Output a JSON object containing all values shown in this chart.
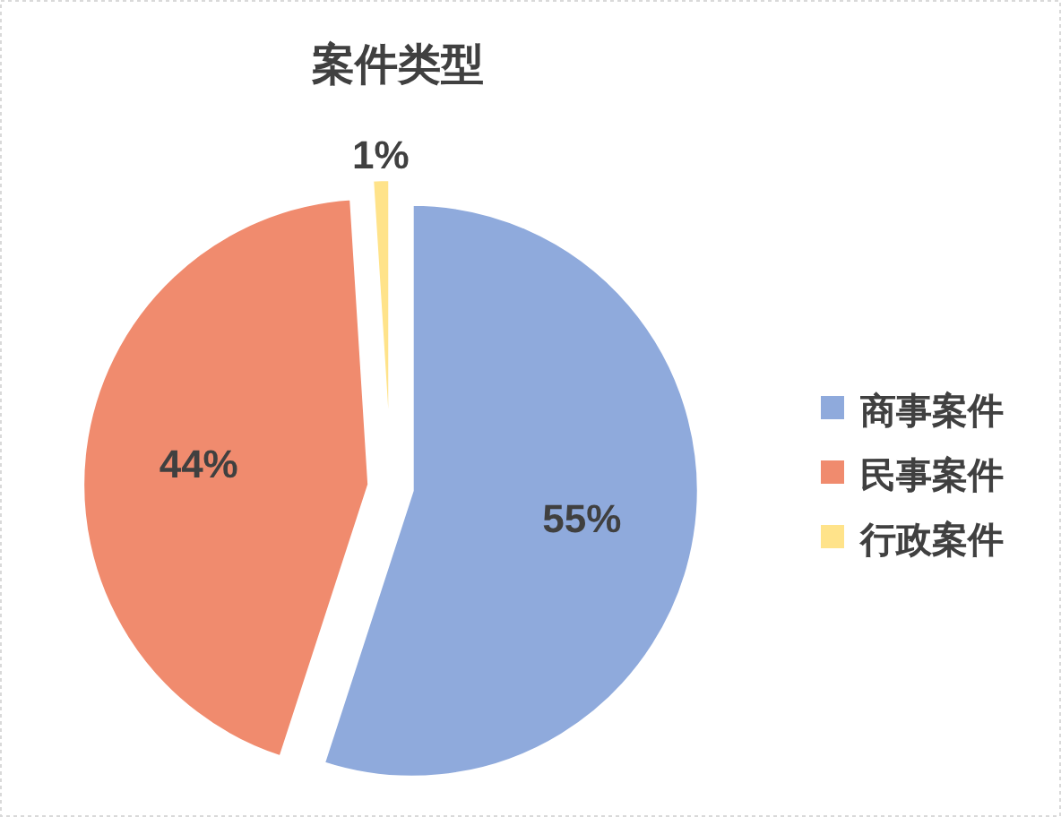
{
  "chart_data": {
    "type": "pie",
    "title": "案件类型",
    "categories": [
      "商事案件",
      "民事案件",
      "行政案件"
    ],
    "values": [
      55,
      44,
      1
    ],
    "colors": [
      "#8faadc",
      "#f08b6e",
      "#ffe38a"
    ],
    "value_labels": [
      "55%",
      "44%",
      "1%"
    ],
    "legend": "right"
  }
}
